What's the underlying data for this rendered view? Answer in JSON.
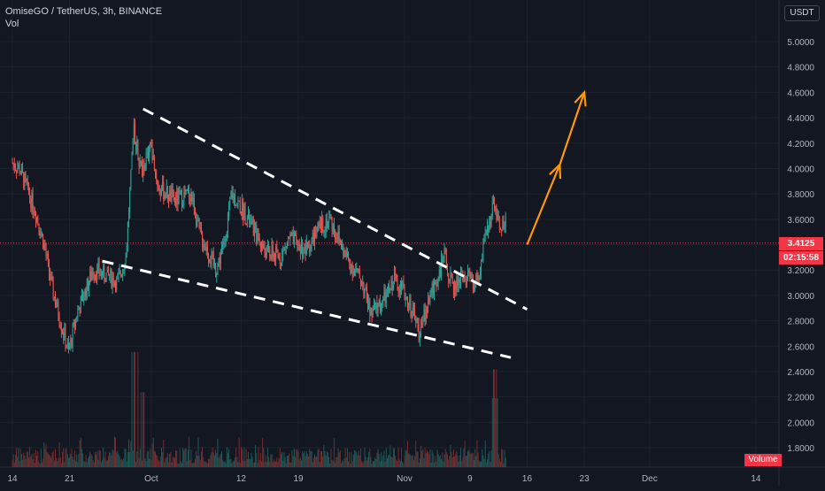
{
  "header": {
    "symbol_line": "OmiseGO / TetherUS, 3h, BINANCE",
    "volume_label": "Vol"
  },
  "currency_badge": "USDT",
  "last_price_label": "3.4125",
  "countdown_label": "02:15:58",
  "volume_tag": "Volume",
  "colors": {
    "background": "#131722",
    "up": "#26a69a",
    "down": "#ef5350",
    "vol_up": "#1f5e5a",
    "vol_down": "#7a2e30",
    "annotation_white": "#ffffff",
    "arrow": "#ff9800",
    "price_line": "#f23645",
    "axis_text": "#b2b5be"
  },
  "chart_data": {
    "type": "candlestick",
    "x_ticks": [
      "14",
      "21",
      "Oct",
      "12",
      "19",
      "Nov",
      "9",
      "16",
      "23",
      "Dec",
      "14"
    ],
    "y_ticks": [
      "5.0000",
      "4.8000",
      "4.6000",
      "4.4000",
      "4.2000",
      "4.0000",
      "3.8000",
      "3.6000",
      "3.4000",
      "3.2000",
      "3.0000",
      "2.8000",
      "2.6000",
      "2.4000",
      "2.2000",
      "2.0000",
      "1.8000"
    ],
    "ylim": [
      1.74,
      5.28
    ],
    "last_price": 3.4125,
    "price_path": [
      {
        "date": "Sep 14",
        "price": 4.05
      },
      {
        "date": "Sep 15",
        "price": 4.0
      },
      {
        "date": "Sep 17",
        "price": 3.65
      },
      {
        "date": "Sep 18",
        "price": 3.4
      },
      {
        "date": "Sep 19",
        "price": 3.05
      },
      {
        "date": "Sep 21",
        "price": 2.55
      },
      {
        "date": "Sep 22",
        "price": 2.85
      },
      {
        "date": "Sep 24",
        "price": 3.2
      },
      {
        "date": "Sep 26",
        "price": 3.15
      },
      {
        "date": "Sep 27",
        "price": 3.1
      },
      {
        "date": "Sep 28",
        "price": 3.3
      },
      {
        "date": "Sep 29",
        "price": 4.3
      },
      {
        "date": "Sep 30",
        "price": 3.95
      },
      {
        "date": "Oct 1",
        "price": 4.2
      },
      {
        "date": "Oct 2",
        "price": 3.85
      },
      {
        "date": "Oct 4",
        "price": 3.75
      },
      {
        "date": "Oct 6",
        "price": 3.8
      },
      {
        "date": "Oct 7",
        "price": 3.5
      },
      {
        "date": "Oct 9",
        "price": 3.2
      },
      {
        "date": "Oct 10",
        "price": 3.4
      },
      {
        "date": "Oct 11",
        "price": 3.8
      },
      {
        "date": "Oct 13",
        "price": 3.6
      },
      {
        "date": "Oct 15",
        "price": 3.35
      },
      {
        "date": "Oct 17",
        "price": 3.3
      },
      {
        "date": "Oct 18",
        "price": 3.45
      },
      {
        "date": "Oct 20",
        "price": 3.35
      },
      {
        "date": "Oct 22",
        "price": 3.55
      },
      {
        "date": "Oct 23",
        "price": 3.6
      },
      {
        "date": "Oct 25",
        "price": 3.3
      },
      {
        "date": "Oct 27",
        "price": 3.1
      },
      {
        "date": "Oct 28",
        "price": 2.85
      },
      {
        "date": "Oct 30",
        "price": 3.0
      },
      {
        "date": "Oct 31",
        "price": 3.15
      },
      {
        "date": "Nov 2",
        "price": 2.9
      },
      {
        "date": "Nov 3",
        "price": 2.7
      },
      {
        "date": "Nov 4",
        "price": 2.95
      },
      {
        "date": "Nov 6",
        "price": 3.3
      },
      {
        "date": "Nov 7",
        "price": 3.05
      },
      {
        "date": "Nov 8",
        "price": 3.15
      },
      {
        "date": "Nov 10",
        "price": 3.1
      },
      {
        "date": "Nov 11",
        "price": 3.45
      },
      {
        "date": "Nov 12",
        "price": 3.7
      },
      {
        "date": "Nov 13",
        "price": 3.55
      },
      {
        "date": "Nov 14",
        "price": 3.6
      },
      {
        "date": "Nov 15",
        "price": 3.4125
      }
    ],
    "volume_spikes": [
      {
        "date": "Sep 29",
        "relative": 1.0
      },
      {
        "date": "Sep 30",
        "relative": 0.65
      },
      {
        "date": "Nov 12",
        "relative": 0.85
      },
      {
        "date": "Nov 12",
        "relative": 0.6
      }
    ],
    "annotations": [
      {
        "type": "dashed-line",
        "role": "upper-trendline",
        "from": {
          "date": "Sep 30",
          "price": 4.47
        },
        "to": {
          "date": "Nov 16",
          "price": 2.89
        }
      },
      {
        "type": "dashed-line",
        "role": "lower-trendline",
        "from": {
          "date": "Sep 25",
          "price": 3.27
        },
        "to": {
          "date": "Nov 14",
          "price": 2.51
        }
      },
      {
        "type": "arrow",
        "role": "breakout-target-1",
        "from": {
          "date": "Nov 16",
          "price": 3.4
        },
        "to": {
          "date": "Nov 20",
          "price": 4.03
        }
      },
      {
        "type": "arrow",
        "role": "breakout-target-2",
        "from": {
          "date": "Nov 20",
          "price": 4.03
        },
        "to": {
          "date": "Nov 23",
          "price": 4.6
        }
      }
    ]
  }
}
